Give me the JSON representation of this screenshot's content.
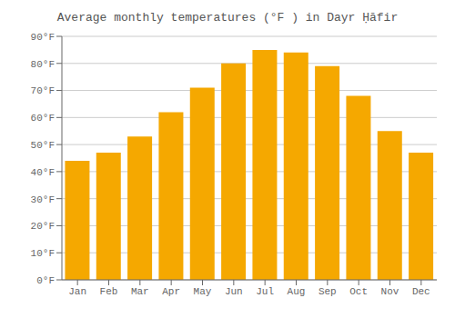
{
  "chart_data": {
    "type": "bar",
    "title": "Average monthly temperatures (°F ) in Dayr Ḥāfir",
    "categories": [
      "Jan",
      "Feb",
      "Mar",
      "Apr",
      "May",
      "Jun",
      "Jul",
      "Aug",
      "Sep",
      "Oct",
      "Nov",
      "Dec"
    ],
    "values": [
      44,
      47,
      53,
      62,
      71,
      80,
      85,
      84,
      79,
      68,
      55,
      47
    ],
    "color": "#F5A800",
    "ylim": [
      0,
      90
    ],
    "yticks": [
      {
        "value": 0,
        "label": "0°F"
      },
      {
        "value": 10,
        "label": "10°F"
      },
      {
        "value": 20,
        "label": "20°F"
      },
      {
        "value": 30,
        "label": "30°F"
      },
      {
        "value": 40,
        "label": "40°F"
      },
      {
        "value": 50,
        "label": "50°F"
      },
      {
        "value": 60,
        "label": "60°F"
      },
      {
        "value": 70,
        "label": "70°F"
      },
      {
        "value": 80,
        "label": "80°F"
      },
      {
        "value": 90,
        "label": "90°F"
      }
    ],
    "grid": true
  }
}
